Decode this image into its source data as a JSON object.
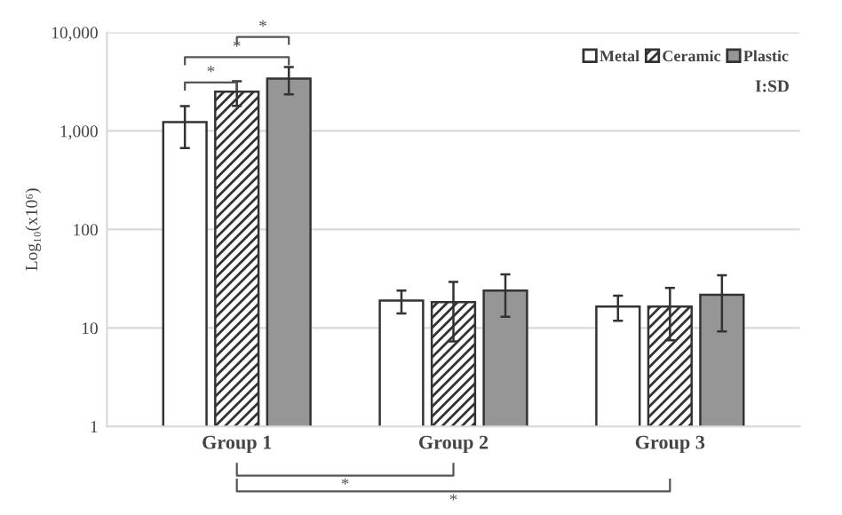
{
  "chart_data": {
    "type": "bar",
    "categories": [
      "Group 1",
      "Group 2",
      "Group 3"
    ],
    "series": [
      {
        "name": "Metal",
        "color": "#ffffff",
        "values": [
          1230,
          19,
          16.5
        ],
        "errors": [
          560,
          5,
          4.7
        ]
      },
      {
        "name": "Ceramic",
        "color": "#333333",
        "values": [
          2500,
          18.3,
          16.5
        ],
        "errors": [
          700,
          11,
          9
        ]
      },
      {
        "name": "Plastic",
        "color": "#969696",
        "values": [
          3400,
          24,
          21.7
        ],
        "errors": [
          1050,
          11,
          12.5
        ]
      }
    ],
    "ylabel": "Log₁₀(x10⁶)",
    "log": true,
    "ylim": [
      1,
      10000
    ],
    "yticks": [
      1,
      10,
      100,
      {
        "value": 1000,
        "label": "1,000"
      },
      {
        "value": 10000,
        "label": "10,000"
      }
    ],
    "grid": "y",
    "legend": "top right",
    "annotations": [
      "I:SD",
      "*",
      "*",
      "*",
      "*",
      "*"
    ]
  }
}
